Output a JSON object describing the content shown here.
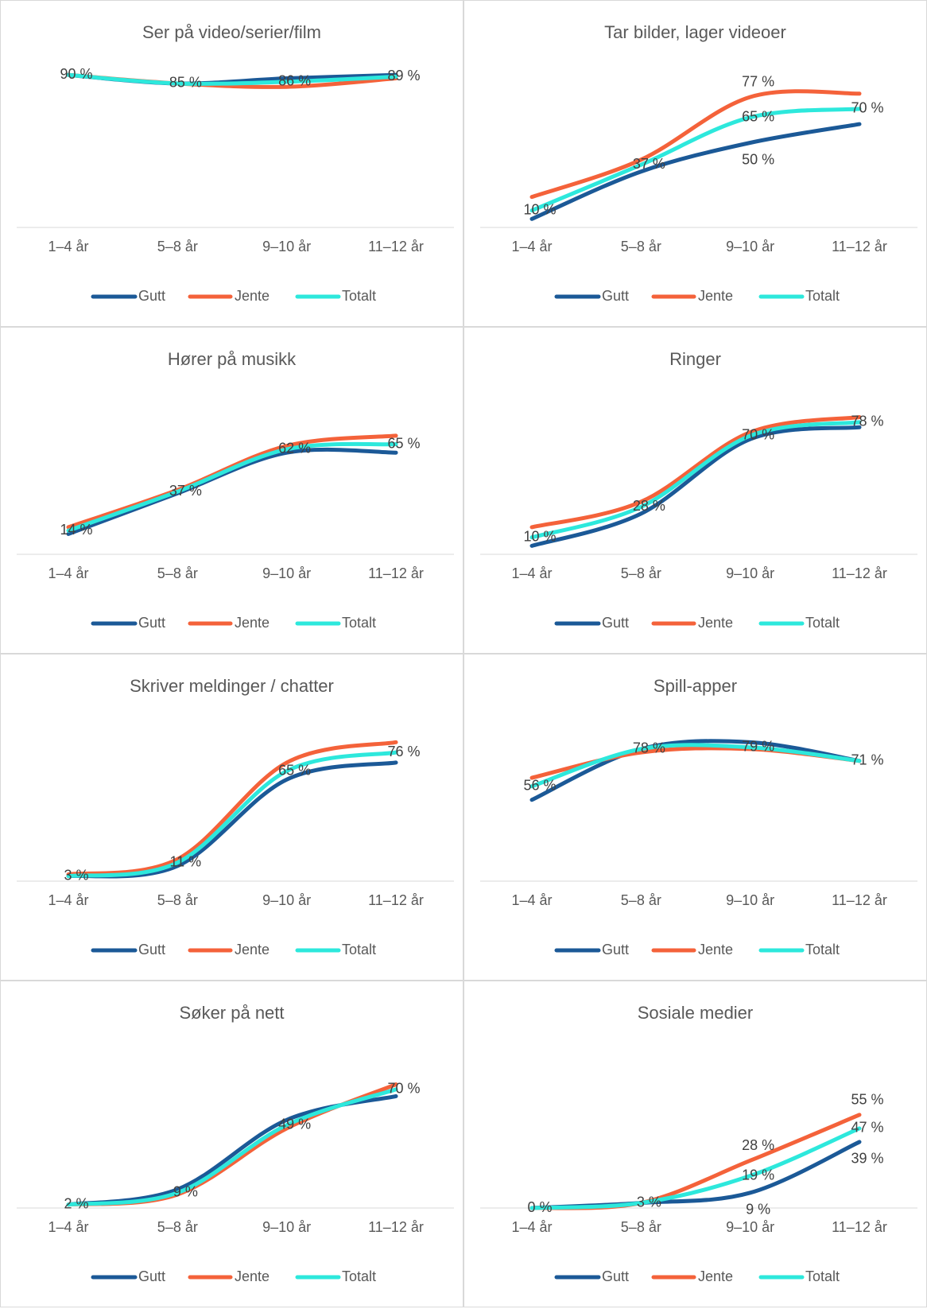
{
  "chart_data": [
    {
      "type": "line",
      "title": "Ser på video/serier/film",
      "categories": [
        "1–4 år",
        "5–8 år",
        "9–10 år",
        "11–12 år"
      ],
      "ylim": [
        0,
        100
      ],
      "series": [
        {
          "name": "Gutt",
          "color": "#1b5997",
          "values": [
            90,
            85,
            88,
            90
          ],
          "value_labels": [
            null,
            null,
            null,
            null
          ]
        },
        {
          "name": "Jente",
          "color": "#f4623a",
          "values": [
            90,
            85,
            83,
            88
          ],
          "value_labels": [
            null,
            null,
            null,
            null
          ]
        },
        {
          "name": "Totalt",
          "color": "#2de8dc",
          "values": [
            90,
            85,
            86,
            89
          ],
          "value_labels": [
            "90 %",
            "85 %",
            "86 %",
            "89 %"
          ]
        }
      ]
    },
    {
      "type": "line",
      "title": "Tar bilder, lager videoer",
      "categories": [
        "1–4 år",
        "5–8 år",
        "9–10 år",
        "11–12 år"
      ],
      "ylim": [
        0,
        100
      ],
      "series": [
        {
          "name": "Gutt",
          "color": "#1b5997",
          "values": [
            5,
            33,
            50,
            61
          ],
          "value_labels": [
            null,
            null,
            "50 %",
            null
          ]
        },
        {
          "name": "Jente",
          "color": "#f4623a",
          "values": [
            18,
            40,
            77,
            79
          ],
          "value_labels": [
            null,
            null,
            "77 %",
            null
          ]
        },
        {
          "name": "Totalt",
          "color": "#2de8dc",
          "values": [
            10,
            37,
            65,
            70
          ],
          "value_labels": [
            "10 %",
            "37 %",
            "65 %",
            "70 %"
          ]
        }
      ]
    },
    {
      "type": "line",
      "title": "Hører på musikk",
      "categories": [
        "1–4 år",
        "5–8 år",
        "9–10 år",
        "11–12 år"
      ],
      "ylim": [
        0,
        100
      ],
      "series": [
        {
          "name": "Gutt",
          "color": "#1b5997",
          "values": [
            12,
            36,
            60,
            60
          ],
          "value_labels": [
            null,
            null,
            null,
            null
          ]
        },
        {
          "name": "Jente",
          "color": "#f4623a",
          "values": [
            16,
            38,
            64,
            70
          ],
          "value_labels": [
            null,
            null,
            null,
            null
          ]
        },
        {
          "name": "Totalt",
          "color": "#2de8dc",
          "values": [
            14,
            37,
            62,
            65
          ],
          "value_labels": [
            "14 %",
            "37 %",
            "62 %",
            "65 %"
          ]
        }
      ]
    },
    {
      "type": "line",
      "title": "Ringer",
      "categories": [
        "1–4 år",
        "5–8 år",
        "9–10 år",
        "11–12 år"
      ],
      "ylim": [
        0,
        100
      ],
      "series": [
        {
          "name": "Gutt",
          "color": "#1b5997",
          "values": [
            5,
            24,
            68,
            75
          ],
          "value_labels": [
            null,
            null,
            null,
            null
          ]
        },
        {
          "name": "Jente",
          "color": "#f4623a",
          "values": [
            16,
            31,
            72,
            81
          ],
          "value_labels": [
            null,
            null,
            null,
            null
          ]
        },
        {
          "name": "Totalt",
          "color": "#2de8dc",
          "values": [
            10,
            28,
            70,
            78
          ],
          "value_labels": [
            "10 %",
            "28 %",
            "70 %",
            "78 %"
          ]
        }
      ]
    },
    {
      "type": "line",
      "title": "Skriver meldinger / chatter",
      "categories": [
        "1–4 år",
        "5–8 år",
        "9–10 år",
        "11–12 år"
      ],
      "ylim": [
        0,
        100
      ],
      "series": [
        {
          "name": "Gutt",
          "color": "#1b5997",
          "values": [
            3,
            9,
            60,
            70
          ],
          "value_labels": [
            null,
            null,
            null,
            null
          ]
        },
        {
          "name": "Jente",
          "color": "#f4623a",
          "values": [
            4,
            13,
            70,
            82
          ],
          "value_labels": [
            null,
            null,
            null,
            null
          ]
        },
        {
          "name": "Totalt",
          "color": "#2de8dc",
          "values": [
            3,
            11,
            65,
            76
          ],
          "value_labels": [
            "3 %",
            "11 %",
            "65 %",
            "76 %"
          ]
        }
      ]
    },
    {
      "type": "line",
      "title": "Spill-apper",
      "categories": [
        "1–4 år",
        "5–8 år",
        "9–10 år",
        "11–12 år"
      ],
      "ylim": [
        0,
        100
      ],
      "series": [
        {
          "name": "Gutt",
          "color": "#1b5997",
          "values": [
            48,
            78,
            82,
            71
          ],
          "value_labels": [
            null,
            null,
            null,
            null
          ]
        },
        {
          "name": "Jente",
          "color": "#f4623a",
          "values": [
            61,
            76,
            78,
            71
          ],
          "value_labels": [
            null,
            null,
            null,
            null
          ]
        },
        {
          "name": "Totalt",
          "color": "#2de8dc",
          "values": [
            56,
            78,
            79,
            71
          ],
          "value_labels": [
            "56 %",
            "78 %",
            "79 %",
            "71 %"
          ]
        }
      ]
    },
    {
      "type": "line",
      "title": "Søker på nett",
      "categories": [
        "1–4 år",
        "5–8 år",
        "9–10 år",
        "11–12 år"
      ],
      "ylim": [
        0,
        100
      ],
      "series": [
        {
          "name": "Gutt",
          "color": "#1b5997",
          "values": [
            2,
            11,
            52,
            66
          ],
          "value_labels": [
            null,
            null,
            null,
            null
          ]
        },
        {
          "name": "Jente",
          "color": "#f4623a",
          "values": [
            2,
            8,
            47,
            73
          ],
          "value_labels": [
            null,
            null,
            null,
            null
          ]
        },
        {
          "name": "Totalt",
          "color": "#2de8dc",
          "values": [
            2,
            9,
            49,
            70
          ],
          "value_labels": [
            "2 %",
            "9 %",
            "49 %",
            "70 %"
          ]
        }
      ]
    },
    {
      "type": "line",
      "title": "Sosiale medier",
      "categories": [
        "1–4 år",
        "5–8 år",
        "9–10 år",
        "11–12 år"
      ],
      "ylim": [
        0,
        100
      ],
      "series": [
        {
          "name": "Gutt",
          "color": "#1b5997",
          "values": [
            0,
            3,
            9,
            39
          ],
          "value_labels": [
            null,
            null,
            "9 %",
            "39 %"
          ]
        },
        {
          "name": "Jente",
          "color": "#f4623a",
          "values": [
            0,
            3,
            28,
            55
          ],
          "value_labels": [
            null,
            null,
            "28 %",
            "55 %"
          ]
        },
        {
          "name": "Totalt",
          "color": "#2de8dc",
          "values": [
            0,
            3,
            19,
            47
          ],
          "value_labels": [
            "0 %",
            "3 %",
            "19 %",
            "47 %"
          ]
        }
      ]
    }
  ]
}
